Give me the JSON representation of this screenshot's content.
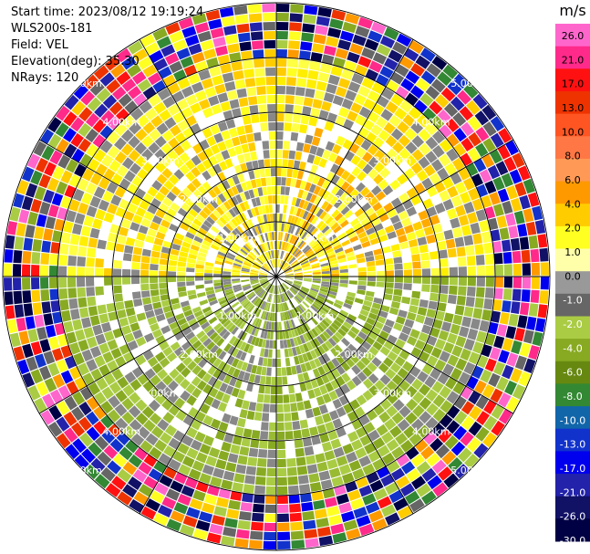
{
  "header": {
    "start_time": "Start time: 2023/08/12 19:19:24",
    "site": "WLS200s-181",
    "field": "Field: VEL",
    "elevation": "Elevation(deg): 35.30",
    "nrays": "NRays: 120"
  },
  "plot": {
    "type": "polar-ppi",
    "range_rings_km": [
      1.0,
      2.0,
      3.0,
      4.0,
      5.0
    ],
    "ring_labels": [
      "1.00km",
      "2.00km",
      "3.00km",
      "4.00km",
      "5.00km"
    ],
    "max_range_km": 5.0,
    "n_rays": 120,
    "spoke_angles_deg": [
      0,
      30,
      60,
      90,
      120,
      150,
      180,
      210,
      240,
      270,
      300,
      330
    ]
  },
  "colorbar": {
    "unit": "m/s",
    "ticks": [
      "26.0",
      "21.0",
      "17.0",
      "13.0",
      "10.0",
      "8.0",
      "6.0",
      "4.0",
      "2.0",
      "1.0",
      "0.0",
      "-1.0",
      "-2.0",
      "-4.0",
      "-6.0",
      "-8.0",
      "-10.0",
      "-13.0",
      "-17.0",
      "-21.0",
      "-26.0",
      "-30.0"
    ],
    "colors": [
      "#ff66cc",
      "#ff2a8a",
      "#ff1111",
      "#ee3300",
      "#ff5522",
      "#ff7744",
      "#ff9955",
      "#ff9900",
      "#ffcc00",
      "#ffff22",
      "#ffffaa",
      "#999999",
      "#666666",
      "#aacc44",
      "#88aa22",
      "#668811",
      "#338833",
      "#1166aa",
      "#1133cc",
      "#0000ee",
      "#2222aa",
      "#111166",
      "#000044"
    ]
  }
}
